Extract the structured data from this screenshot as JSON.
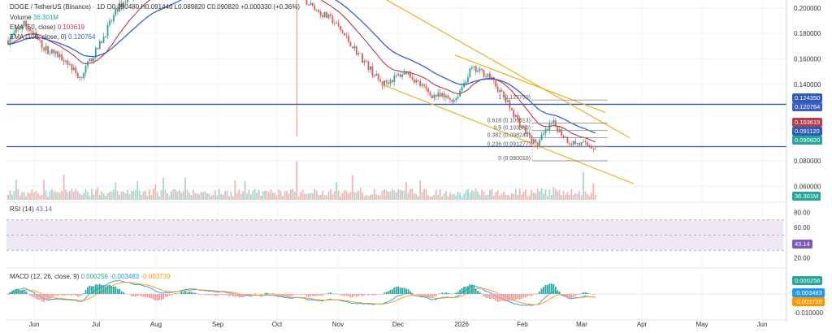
{
  "header": {
    "symbol_line": "DOGE / TetherUS (Binance) · 1D",
    "ohlc": "O0.090480 H0.091440 L0.089820 C0.090820 +0.000330 (+0.36%)",
    "volume_label": "Volume",
    "volume_value": "36.301M",
    "ema50_label": "EMA (50, close)",
    "ema50_value": "0.103619",
    "ema100_label": "EMA (100, close, 0)",
    "ema100_value": "0.120764",
    "rsi_label": "RSI (14)",
    "rsi_value": "43.14",
    "macd_label": "MACD (12, 26, close, 9)",
    "macd_hist": "0.000256",
    "macd_line": "-0.003483",
    "macd_signal": "-0.003739"
  },
  "colors": {
    "up": "#26a69a",
    "down": "#ef5350",
    "ema50": "#b33b4e",
    "ema100": "#3a5fcd",
    "channel": "#e6b422",
    "hline": "#2f5bb7",
    "rsi": "#7e57c2",
    "macd": "#2196f3",
    "signal": "#ff9800"
  },
  "badges": {
    "resist": "0.124350",
    "ema100": "0.120764",
    "ema50": "0.103619",
    "level": "0.091120",
    "price": "0.090820",
    "vol": "36.301M",
    "rsi": "43.14",
    "hist": "0.000256",
    "macd": "-0.003483",
    "signal": "-0.003739"
  },
  "fib_labels": [
    "1 (0.127750)",
    "0.618 (0.109513)",
    "0.5 (0.103880)",
    "0.382 (0.098247)",
    "0.236 (0.091277)",
    "0 (0.080010)"
  ],
  "chart_data": {
    "type": "candlestick",
    "title": "DOGE / TetherUS (Binance) · 1D",
    "x_labels": [
      "Jun",
      "Jul",
      "Aug",
      "Sep",
      "Oct",
      "Nov",
      "Dec",
      "2026",
      "Feb",
      "Mar",
      "Apr",
      "May",
      "Jun"
    ],
    "price_axis": {
      "ticks": [
        "0.200000",
        "0.180000",
        "0.160000",
        "0.140000",
        "0.080000",
        "0.060000"
      ],
      "ylim": [
        0.05,
        0.205
      ]
    },
    "horizontal_lines": [
      0.12435,
      0.09112
    ],
    "fibonacci": {
      "high": 0.12775,
      "low": 0.08001,
      "levels": [
        1,
        0.618,
        0.5,
        0.382,
        0.236,
        0
      ]
    },
    "rsi_axis": {
      "ticks": [
        "80.00",
        "60.00",
        "20.00"
      ],
      "bands": [
        70,
        50,
        30
      ]
    },
    "macd_axis": {
      "ticks": [
        "-0.010000"
      ]
    },
    "last_price": 0.09082,
    "ema50_last": 0.103619,
    "ema100_last": 0.120764,
    "rsi_last": 43.14
  }
}
